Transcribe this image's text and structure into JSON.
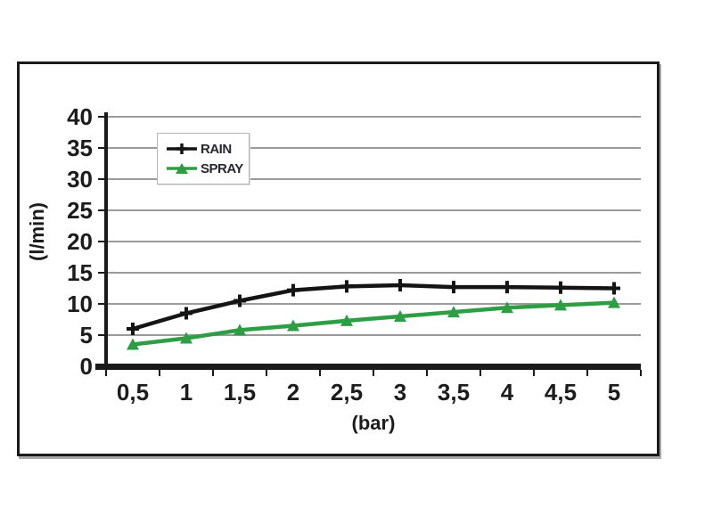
{
  "chart_data": {
    "type": "line",
    "title": "",
    "xlabel": "(bar)",
    "ylabel": "(l/min)",
    "x_tick_labels": [
      "0,5",
      "1",
      "1,5",
      "2",
      "2,5",
      "3",
      "3,5",
      "4",
      "4,5",
      "5"
    ],
    "x_values": [
      0.5,
      1,
      1.5,
      2,
      2.5,
      3,
      3.5,
      4,
      4.5,
      5
    ],
    "y_tick_labels": [
      "0",
      "5",
      "10",
      "15",
      "20",
      "25",
      "30",
      "35",
      "40"
    ],
    "ylim": [
      0,
      40
    ],
    "ytick_step": 5,
    "grid": "horizontal-gray",
    "legend_position": "top-left-inside",
    "series": [
      {
        "name": "RAIN",
        "color": "#141414",
        "marker": "plus",
        "values": [
          6,
          8.5,
          10.5,
          12.2,
          12.8,
          13,
          12.7,
          12.7,
          12.6,
          12.5
        ]
      },
      {
        "name": "SPRAY",
        "color": "#2e9e44",
        "marker": "triangle",
        "values": [
          3.5,
          4.5,
          5.8,
          6.5,
          7.3,
          8,
          8.7,
          9.4,
          9.8,
          10.2
        ]
      }
    ]
  },
  "colors": {
    "grid": "#9a9a9a",
    "axis": "#1a1a1a",
    "text": "#1c1c1c",
    "frame": "#1a1a1a",
    "legend_border": "#b5b5b5"
  }
}
